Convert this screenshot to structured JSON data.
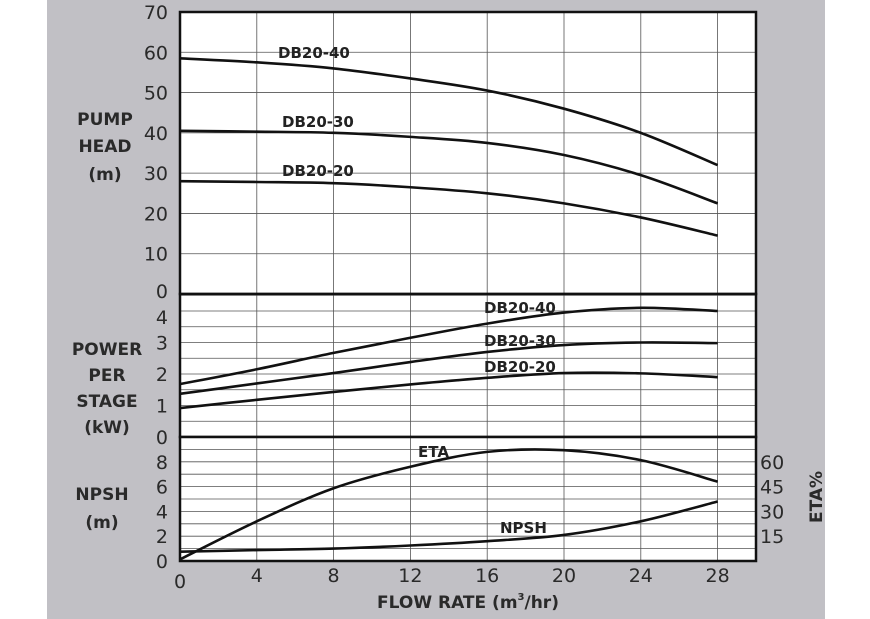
{
  "chart_data": [
    {
      "type": "line",
      "panel": "pump-head",
      "ylabel": [
        "PUMP",
        "HEAD",
        "(m)"
      ],
      "ylim": [
        0,
        70
      ],
      "yticks": [
        0,
        10,
        20,
        30,
        40,
        50,
        60,
        70
      ],
      "x": [
        0,
        4,
        8,
        12,
        16,
        20,
        24,
        28
      ],
      "series": [
        {
          "name": "DB20-40",
          "values": [
            58.5,
            57.5,
            56,
            53.5,
            50.5,
            46,
            40,
            32
          ]
        },
        {
          "name": "DB20-30",
          "values": [
            40.5,
            40.3,
            40,
            39,
            37.5,
            34.5,
            29.5,
            22.5
          ]
        },
        {
          "name": "DB20-20",
          "values": [
            28,
            27.8,
            27.5,
            26.5,
            25,
            22.5,
            19,
            14.5
          ]
        }
      ],
      "grid": true
    },
    {
      "type": "line",
      "panel": "power-per-stage",
      "ylabel": [
        "POWER",
        "PER",
        "STAGE",
        "(kW)"
      ],
      "ylim": [
        0,
        4.54
      ],
      "yticks": [
        0,
        1,
        2,
        3,
        4
      ],
      "x": [
        0,
        4,
        8,
        12,
        16,
        20,
        24,
        28
      ],
      "series": [
        {
          "name": "DB20-40",
          "values": [
            1.68,
            2.15,
            2.67,
            3.15,
            3.6,
            3.95,
            4.1,
            4.0
          ]
        },
        {
          "name": "DB20-30",
          "values": [
            1.37,
            1.7,
            2.03,
            2.38,
            2.7,
            2.92,
            3.0,
            2.98
          ]
        },
        {
          "name": "DB20-20",
          "values": [
            0.92,
            1.18,
            1.43,
            1.67,
            1.88,
            2.03,
            2.02,
            1.9
          ]
        }
      ],
      "grid": true
    },
    {
      "type": "line",
      "panel": "npsh-eta",
      "ylabel": [
        "NPSH",
        "(m)"
      ],
      "ylim": [
        0,
        10
      ],
      "yticks": [
        0,
        2,
        4,
        6,
        8
      ],
      "y2label": "ETA%",
      "y2lim": [
        0,
        75
      ],
      "y2ticks": [
        15,
        30,
        45,
        60
      ],
      "x": [
        0,
        4,
        8,
        12,
        16,
        20,
        24,
        28
      ],
      "series": [
        {
          "name": "ETA",
          "axis": "right",
          "values": [
            1,
            24,
            44,
            57,
            66,
            67,
            61,
            48
          ]
        },
        {
          "name": "NPSH",
          "axis": "left",
          "values": [
            0.75,
            0.88,
            1.0,
            1.25,
            1.6,
            2.1,
            3.2,
            4.8
          ]
        }
      ],
      "grid": true
    }
  ],
  "x_axis": {
    "label": "FLOW RATE (m",
    "label_sup": "3",
    "label_end": "/hr)",
    "xlim": [
      0,
      30
    ],
    "ticks": [
      0,
      4,
      8,
      12,
      16,
      20,
      24,
      28
    ]
  },
  "colors": {
    "background": "#c1c0c5",
    "plot": "#ffffff",
    "line": "#111111",
    "grid": "#555555"
  }
}
